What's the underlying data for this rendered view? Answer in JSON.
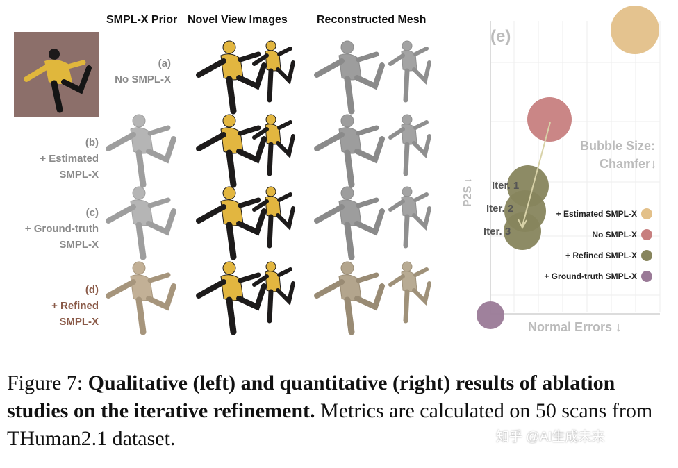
{
  "headers": {
    "prior": "SMPL-X Prior",
    "novel": "Novel View Images",
    "mesh": "Reconstructed Mesh"
  },
  "rows": [
    {
      "l1": "(a)",
      "l2": "No SMPL-X",
      "l3": ""
    },
    {
      "l1": "(b)",
      "l2": "+ Estimated",
      "l3": "SMPL-X"
    },
    {
      "l1": "(c)",
      "l2": "+ Ground-truth",
      "l3": "SMPL-X"
    },
    {
      "l1": "(d)",
      "l2": "+ Refined",
      "l3": "SMPL-X"
    }
  ],
  "chart_data": {
    "type": "scatter",
    "panel_label": "(e)",
    "xlabel": "Normal Errors ↓",
    "ylabel": "P2S ↓",
    "size_note": [
      "Bubble Size:",
      "Chamfer↓"
    ],
    "grid": true,
    "legend": [
      {
        "name": "+ Estimated SMPL-X",
        "color": "#e3c089"
      },
      {
        "name": "No SMPL-X",
        "color": "#c77f7f"
      },
      {
        "name": "+ Refined SMPL-X",
        "color": "#87855d"
      },
      {
        "name": "+ Ground-truth SMPL-X",
        "color": "#9a7a97"
      }
    ],
    "iteration_labels": [
      "Iter. 1",
      "Iter. 2",
      "Iter. 3"
    ]
  },
  "caption": {
    "prefix": "Figure 7: ",
    "bold": "Qualitative (left) and quantitative (right) results of ablation studies on the iterative refinement.",
    "rest": " Metrics are calculated on 50 scans from THuman2.1 dataset."
  },
  "watermark": "知乎 @AI生成未来"
}
